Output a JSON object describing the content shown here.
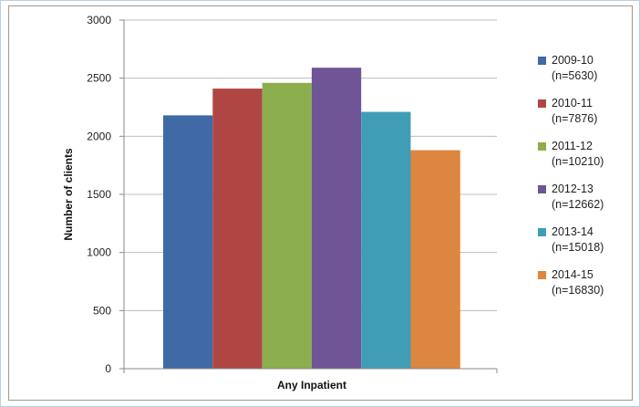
{
  "chart_data": {
    "type": "bar",
    "title": "",
    "xlabel": "Any Inpatient",
    "ylabel": "Number of clients",
    "categories": [
      "Any Inpatient"
    ],
    "ylim": [
      0,
      3000
    ],
    "yticks": [
      "0",
      "500",
      "1000",
      "1500",
      "2000",
      "2500",
      "3000"
    ],
    "grid": true,
    "legend_position": "right",
    "series": [
      {
        "name": "2009-10",
        "sublabel": "(n=5630)",
        "values": [
          2180
        ],
        "color": "#3f6aa5"
      },
      {
        "name": "2010-11",
        "sublabel": "(n=7876)",
        "values": [
          2410
        ],
        "color": "#b04643"
      },
      {
        "name": "2011-12",
        "sublabel": "(n=10210)",
        "values": [
          2460
        ],
        "color": "#8cae4f"
      },
      {
        "name": "2012-13",
        "sublabel": "(n=12662)",
        "values": [
          2590
        ],
        "color": "#6f5596"
      },
      {
        "name": "2013-14",
        "sublabel": "(n=15018)",
        "values": [
          2210
        ],
        "color": "#3f9db6"
      },
      {
        "name": "2014-15",
        "sublabel": "(n=16830)",
        "values": [
          1880
        ],
        "color": "#dc8640"
      }
    ]
  }
}
